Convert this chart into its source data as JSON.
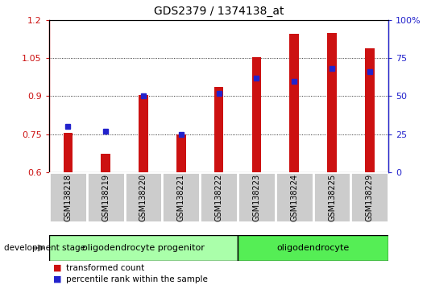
{
  "title": "GDS2379 / 1374138_at",
  "samples": [
    "GSM138218",
    "GSM138219",
    "GSM138220",
    "GSM138221",
    "GSM138222",
    "GSM138223",
    "GSM138224",
    "GSM138225",
    "GSM138229"
  ],
  "transformed_count": [
    0.757,
    0.672,
    0.905,
    0.748,
    0.935,
    1.055,
    1.145,
    1.15,
    1.09
  ],
  "percentile_rank": [
    30,
    27,
    50,
    25,
    52,
    62,
    60,
    68,
    66
  ],
  "bar_bottom": 0.6,
  "ylim_left": [
    0.6,
    1.2
  ],
  "ylim_right": [
    0,
    100
  ],
  "yticks_left": [
    0.6,
    0.75,
    0.9,
    1.05,
    1.2
  ],
  "yticks_right": [
    0,
    25,
    50,
    75,
    100
  ],
  "ytick_labels_left": [
    "0.6",
    "0.75",
    "0.9",
    "1.05",
    "1.2"
  ],
  "ytick_labels_right": [
    "0",
    "25",
    "50",
    "75",
    "100%"
  ],
  "bar_color": "#cc1111",
  "dot_color": "#2222cc",
  "group1_label": "oligodendrocyte progenitor",
  "group2_label": "oligodendrocyte",
  "group1_indices": [
    0,
    1,
    2,
    3,
    4
  ],
  "group2_indices": [
    5,
    6,
    7,
    8
  ],
  "dev_stage_label": "development stage",
  "legend_bar_label": "transformed count",
  "legend_dot_label": "percentile rank within the sample",
  "group1_color": "#aaffaa",
  "group2_color": "#55ee55",
  "tick_label_bg": "#cccccc",
  "bar_width": 0.25
}
